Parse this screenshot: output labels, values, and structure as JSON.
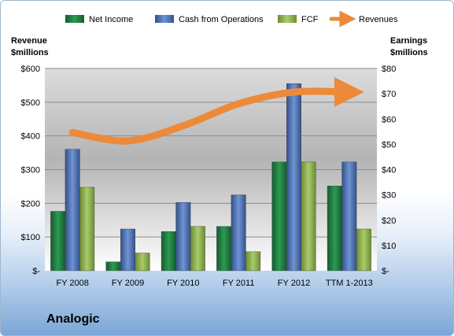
{
  "company_name": "Analogic",
  "chart_data": {
    "type": "bar",
    "categories": [
      "FY 2008",
      "FY 2009",
      "FY 2010",
      "FY 2011",
      "FY 2012",
      "TTM 1-2013"
    ],
    "series": [
      {
        "name": "Net Income",
        "axis": "right",
        "color": "#1f7a3f",
        "values": [
          23.5,
          3.5,
          15.5,
          17.5,
          43,
          33.5
        ]
      },
      {
        "name": "Cash from Operations",
        "axis": "right",
        "color": "#4a6fb5",
        "values": [
          48,
          16.5,
          27,
          30,
          74,
          43
        ]
      },
      {
        "name": "FCF",
        "axis": "right",
        "color": "#8db24a",
        "values": [
          33,
          7,
          17.5,
          7.5,
          43,
          16.5
        ]
      },
      {
        "name": "Revenues",
        "axis": "left",
        "type": "line",
        "color": "#ec8a3a",
        "values": [
          410,
          385,
          430,
          495,
          530,
          530
        ]
      }
    ],
    "y_left": {
      "label_lines": [
        "Revenue",
        "$millions"
      ],
      "ticks": [
        "$-",
        "$100",
        "$200",
        "$300",
        "$400",
        "$500",
        "$600"
      ],
      "ylim": [
        0,
        600
      ]
    },
    "y_right": {
      "label_lines": [
        "Earnings",
        "$millions"
      ],
      "ticks": [
        "$-",
        "$10",
        "$20",
        "$30",
        "$40",
        "$50",
        "$60",
        "$70",
        "$80"
      ],
      "ylim": [
        0,
        80
      ]
    },
    "legend_position": "top",
    "grid": true
  }
}
